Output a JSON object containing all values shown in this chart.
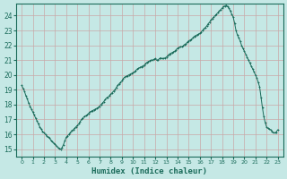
{
  "title": "",
  "xlabel": "Humidex (Indice chaleur)",
  "ylabel": "",
  "bg_color": "#c5e8e5",
  "grid_color": "#c8a8a8",
  "line_color": "#1a6b5a",
  "marker_color": "#1a6b5a",
  "xlim": [
    -0.5,
    23.5
  ],
  "ylim": [
    14.5,
    24.8
  ],
  "xticks": [
    0,
    1,
    2,
    3,
    4,
    5,
    6,
    7,
    8,
    9,
    10,
    11,
    12,
    13,
    14,
    15,
    16,
    17,
    18,
    19,
    20,
    21,
    22,
    23
  ],
  "yticks": [
    15,
    16,
    17,
    18,
    19,
    20,
    21,
    22,
    23,
    24
  ],
  "x": [
    0.0,
    0.125,
    0.25,
    0.375,
    0.5,
    0.625,
    0.75,
    0.875,
    1.0,
    1.125,
    1.25,
    1.375,
    1.5,
    1.625,
    1.75,
    1.875,
    2.0,
    2.125,
    2.25,
    2.375,
    2.5,
    2.625,
    2.75,
    2.875,
    3.0,
    3.125,
    3.25,
    3.375,
    3.5,
    3.625,
    3.75,
    3.875,
    4.0,
    4.125,
    4.25,
    4.375,
    4.5,
    4.625,
    4.75,
    4.875,
    5.0,
    5.125,
    5.25,
    5.375,
    5.5,
    5.625,
    5.75,
    5.875,
    6.0,
    6.125,
    6.25,
    6.375,
    6.5,
    6.625,
    6.75,
    6.875,
    7.0,
    7.125,
    7.25,
    7.375,
    7.5,
    7.625,
    7.75,
    7.875,
    8.0,
    8.125,
    8.25,
    8.375,
    8.5,
    8.625,
    8.75,
    8.875,
    9.0,
    9.125,
    9.25,
    9.375,
    9.5,
    9.625,
    9.75,
    9.875,
    10.0,
    10.125,
    10.25,
    10.375,
    10.5,
    10.625,
    10.75,
    10.875,
    11.0,
    11.125,
    11.25,
    11.375,
    11.5,
    11.625,
    11.75,
    11.875,
    12.0,
    12.125,
    12.25,
    12.375,
    12.5,
    12.625,
    12.75,
    12.875,
    13.0,
    13.125,
    13.25,
    13.375,
    13.5,
    13.625,
    13.75,
    13.875,
    14.0,
    14.125,
    14.25,
    14.375,
    14.5,
    14.625,
    14.75,
    14.875,
    15.0,
    15.125,
    15.25,
    15.375,
    15.5,
    15.625,
    15.75,
    15.875,
    16.0,
    16.125,
    16.25,
    16.375,
    16.5,
    16.625,
    16.75,
    16.875,
    17.0,
    17.125,
    17.25,
    17.375,
    17.5,
    17.625,
    17.75,
    17.875,
    18.0,
    18.125,
    18.25,
    18.375,
    18.5,
    18.625,
    18.75,
    18.875,
    19.0,
    19.125,
    19.25,
    19.375,
    19.5,
    19.625,
    19.75,
    19.875,
    20.0,
    20.125,
    20.25,
    20.375,
    20.5,
    20.625,
    20.75,
    20.875,
    21.0,
    21.125,
    21.25,
    21.375,
    21.5,
    21.625,
    21.75,
    21.875,
    22.0,
    22.125,
    22.25,
    22.375,
    22.5,
    22.625,
    22.75,
    22.875,
    23.0
  ],
  "y": [
    19.3,
    19.1,
    18.9,
    18.6,
    18.4,
    18.1,
    17.9,
    17.7,
    17.5,
    17.3,
    17.1,
    16.9,
    16.7,
    16.5,
    16.35,
    16.2,
    16.1,
    16.0,
    15.9,
    15.8,
    15.75,
    15.6,
    15.5,
    15.4,
    15.35,
    15.2,
    15.1,
    15.05,
    15.0,
    15.1,
    15.3,
    15.55,
    15.8,
    15.9,
    16.0,
    16.1,
    16.25,
    16.3,
    16.4,
    16.5,
    16.6,
    16.7,
    16.85,
    17.0,
    17.1,
    17.2,
    17.25,
    17.3,
    17.4,
    17.5,
    17.55,
    17.6,
    17.65,
    17.7,
    17.75,
    17.8,
    17.9,
    18.0,
    18.1,
    18.2,
    18.35,
    18.45,
    18.5,
    18.6,
    18.7,
    18.8,
    18.9,
    19.0,
    19.15,
    19.3,
    19.4,
    19.5,
    19.6,
    19.75,
    19.85,
    19.9,
    19.95,
    20.0,
    20.05,
    20.1,
    20.15,
    20.2,
    20.3,
    20.4,
    20.45,
    20.5,
    20.55,
    20.6,
    20.65,
    20.75,
    20.85,
    20.9,
    20.95,
    21.0,
    21.0,
    21.05,
    21.1,
    21.0,
    21.0,
    21.1,
    21.15,
    21.1,
    21.1,
    21.15,
    21.2,
    21.3,
    21.4,
    21.45,
    21.5,
    21.55,
    21.6,
    21.7,
    21.8,
    21.85,
    21.9,
    21.9,
    21.95,
    22.05,
    22.1,
    22.2,
    22.3,
    22.35,
    22.4,
    22.5,
    22.6,
    22.65,
    22.7,
    22.75,
    22.8,
    22.9,
    23.0,
    23.1,
    23.2,
    23.3,
    23.45,
    23.55,
    23.7,
    23.8,
    23.9,
    24.0,
    24.1,
    24.2,
    24.3,
    24.4,
    24.5,
    24.6,
    24.65,
    24.7,
    24.6,
    24.5,
    24.3,
    24.1,
    23.9,
    23.5,
    23.0,
    22.7,
    22.5,
    22.3,
    22.0,
    21.8,
    21.6,
    21.4,
    21.2,
    21.0,
    20.8,
    20.6,
    20.4,
    20.2,
    20.0,
    19.8,
    19.5,
    19.2,
    18.5,
    17.8,
    17.2,
    16.8,
    16.5,
    16.4,
    16.35,
    16.3,
    16.2,
    16.1,
    16.1,
    16.15,
    16.3
  ]
}
